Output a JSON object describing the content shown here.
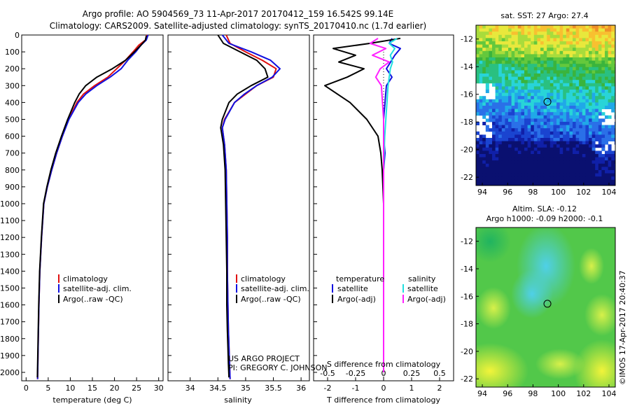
{
  "header": {
    "line1": "Argo profile: AO 5904569_73 11-Apr-2017 20170412_159 16.542S 99.14E",
    "line2": "Climatology: CARS2009. Satellite-adjusted climatology: synTS_20170410.nc (1.7d earlier)"
  },
  "colors": {
    "clim": "#e01010",
    "sat": "#1010e0",
    "argo": "#000000",
    "sal_sat": "#20e0e0",
    "sal_argo": "#ff20ff"
  },
  "chart_data": [
    {
      "type": "line",
      "id": "temperature",
      "xlabel": "temperature (deg C)",
      "xlim": [
        -1,
        31
      ],
      "ylim": [
        0,
        2050
      ],
      "xticks": [
        0,
        5,
        10,
        15,
        20,
        25,
        30
      ],
      "yticks": [
        0,
        100,
        200,
        300,
        400,
        500,
        600,
        700,
        800,
        900,
        1000,
        1100,
        1200,
        1300,
        1400,
        1500,
        1600,
        1700,
        1800,
        1900,
        2000
      ],
      "legend": {
        "position": "lower-middle",
        "entries": [
          "climatology",
          "satellite-adj. clim.",
          "Argo(..raw -QC)"
        ]
      },
      "series": [
        {
          "name": "climatology",
          "color_key": "clim",
          "x": [
            27.3,
            27,
            25.5,
            24.2,
            22.5,
            20.5,
            18.5,
            15.5,
            13,
            11.5,
            9.6,
            8.2,
            6.9,
            5.8,
            4.8,
            4,
            3.5,
            3.1,
            2.9,
            2.75,
            2.6
          ],
          "y": [
            0,
            30,
            60,
            100,
            150,
            200,
            250,
            300,
            350,
            400,
            500,
            600,
            700,
            800,
            900,
            1000,
            1200,
            1400,
            1600,
            1800,
            2040
          ]
        },
        {
          "name": "satellite-adj. clim.",
          "color_key": "sat",
          "x": [
            27.6,
            27.2,
            26,
            24.8,
            23,
            21.5,
            19,
            16,
            13.5,
            11.8,
            9.7,
            8.2,
            6.9,
            5.8,
            4.8,
            4,
            3.5,
            3.1,
            2.9,
            2.75,
            2.6
          ],
          "y": [
            0,
            30,
            60,
            100,
            150,
            200,
            250,
            300,
            350,
            400,
            500,
            600,
            700,
            800,
            900,
            1000,
            1200,
            1400,
            1600,
            1800,
            2040
          ]
        },
        {
          "name": "Argo(..raw -QC)",
          "color_key": "argo",
          "x": [
            27.2,
            27,
            26,
            24.5,
            22.5,
            19.5,
            16,
            13.5,
            12,
            11,
            9.4,
            8,
            6.7,
            5.6,
            4.7,
            3.95,
            3.45,
            3.05,
            2.85,
            2.7,
            2.55
          ],
          "y": [
            5,
            30,
            60,
            100,
            150,
            200,
            250,
            300,
            350,
            400,
            500,
            600,
            700,
            800,
            900,
            1000,
            1200,
            1400,
            1600,
            1800,
            2030
          ]
        }
      ]
    },
    {
      "type": "line",
      "id": "salinity",
      "xlabel": "salinity",
      "xlim": [
        33.6,
        36.15
      ],
      "ylim": [
        0,
        2050
      ],
      "xticks": [
        34,
        34.5,
        35,
        35.5,
        36
      ],
      "legend": {
        "position": "lower-middle",
        "entries": [
          "climatology",
          "satellite-adj. clim.",
          "Argo(..raw -QC)"
        ]
      },
      "annotation": [
        "US ARGO PROJECT",
        "PI: GREGORY C. JOHNSON"
      ],
      "series": [
        {
          "name": "climatology",
          "color_key": "clim",
          "x": [
            34.65,
            34.72,
            35,
            35.3,
            35.55,
            35.5,
            35.2,
            35,
            34.8,
            34.62,
            34.58,
            34.62,
            34.65,
            34.66,
            34.67,
            34.67,
            34.68,
            34.69,
            34.7,
            34.71,
            34.72
          ],
          "y": [
            0,
            50,
            100,
            150,
            200,
            250,
            300,
            350,
            400,
            500,
            550,
            650,
            800,
            1000,
            1200,
            1400,
            1600,
            1750,
            1850,
            1950,
            2040
          ]
        },
        {
          "name": "satellite-adj. clim.",
          "color_key": "sat",
          "x": [
            34.58,
            34.7,
            35.1,
            35.45,
            35.62,
            35.48,
            35.2,
            34.98,
            34.8,
            34.63,
            34.58,
            34.62,
            34.65,
            34.66,
            34.67,
            34.67,
            34.68,
            34.69,
            34.7,
            34.71,
            34.72
          ],
          "y": [
            0,
            50,
            100,
            150,
            200,
            250,
            300,
            350,
            400,
            500,
            550,
            650,
            800,
            1000,
            1200,
            1400,
            1600,
            1750,
            1850,
            1950,
            2040
          ]
        },
        {
          "name": "Argo(..raw -QC)",
          "color_key": "argo",
          "x": [
            34.5,
            34.6,
            34.9,
            35.2,
            35.35,
            35.4,
            35.1,
            34.85,
            34.7,
            34.58,
            34.55,
            34.6,
            34.63,
            34.64,
            34.65,
            34.66,
            34.66,
            34.67,
            34.68,
            34.69,
            34.7
          ],
          "y": [
            0,
            50,
            100,
            150,
            200,
            250,
            300,
            350,
            400,
            500,
            550,
            650,
            800,
            1000,
            1200,
            1400,
            1600,
            1750,
            1850,
            1950,
            2030
          ]
        }
      ]
    },
    {
      "type": "line",
      "id": "difference",
      "xlabel": "T difference from climatology",
      "x2label": "S difference from climatology",
      "xlim": [
        -2.5,
        2.5
      ],
      "ylim": [
        0,
        2050
      ],
      "xticks": [
        -2,
        -1,
        0,
        1,
        2
      ],
      "x2ticks": [
        {
          "value": -0.5,
          "label": "-0.5"
        },
        {
          "value": -0.25,
          "label": "-0.25"
        },
        {
          "value": 0,
          "label": "0"
        },
        {
          "value": 0.25,
          "label": "0.25"
        },
        {
          "value": 0.5,
          "label": "0.5"
        }
      ],
      "x2scale": 4,
      "legend": {
        "temperature_head": "temperature",
        "salinity_head": "salinity",
        "temperature_entries": [
          "satellite",
          "Argo(-adj)"
        ],
        "salinity_entries": [
          "satellite",
          "Argo(-adj)"
        ]
      },
      "series": [
        {
          "name": "T satellite",
          "color_key": "sat",
          "x": [
            0.3,
            0.2,
            0.6,
            0.4,
            0.25,
            0.1,
            0.3,
            0.1,
            0.05,
            0,
            0,
            0.05,
            0,
            0,
            0,
            0,
            0,
            0,
            0
          ],
          "y": [
            20,
            50,
            80,
            120,
            160,
            200,
            250,
            300,
            400,
            500,
            600,
            700,
            800,
            1000,
            1200,
            1400,
            1600,
            1800,
            2000
          ]
        },
        {
          "name": "T Argo(-adj)",
          "color_key": "argo",
          "x": [
            0.6,
            -0.5,
            -1.8,
            -1,
            -1.6,
            -0.7,
            -1.3,
            -2.1,
            -1.2,
            -0.6,
            -0.2,
            -0.1,
            -0.05,
            0,
            0,
            0,
            0,
            0,
            0
          ],
          "y": [
            20,
            50,
            80,
            120,
            160,
            200,
            250,
            300,
            400,
            500,
            600,
            700,
            800,
            1000,
            1200,
            1400,
            1600,
            1800,
            2000
          ]
        },
        {
          "name": "S satellite",
          "color_key": "sal_sat",
          "scale_key": "x2",
          "x": [
            0.12,
            0.05,
            0.1,
            0.06,
            0.08,
            0.06,
            0.05,
            0.04,
            0.03,
            0.02,
            0.01,
            0,
            0,
            0,
            0
          ],
          "y": [
            20,
            50,
            80,
            120,
            160,
            200,
            250,
            300,
            400,
            500,
            600,
            800,
            1000,
            1400,
            2000
          ]
        },
        {
          "name": "S Argo(-adj)",
          "color_key": "sal_argo",
          "scale_key": "x2",
          "x": [
            -0.05,
            -0.12,
            0.02,
            -0.1,
            0.05,
            -0.03,
            -0.07,
            -0.02,
            -0.01,
            0,
            0,
            0,
            0,
            0,
            0
          ],
          "y": [
            20,
            50,
            80,
            120,
            160,
            200,
            250,
            300,
            400,
            500,
            600,
            800,
            1000,
            1400,
            2000
          ]
        }
      ]
    },
    {
      "type": "heatmap",
      "id": "sst_map",
      "title": "sat. SST: 27 Argo: 27.4",
      "xlim": [
        93.5,
        104.5
      ],
      "ylim": [
        -22.6,
        -11
      ],
      "xticks": [
        94,
        96,
        98,
        100,
        102,
        104
      ],
      "yticks": [
        -12,
        -14,
        -16,
        -18,
        -20,
        -22
      ],
      "marker": {
        "lon": 99.14,
        "lat": -16.542
      }
    },
    {
      "type": "heatmap",
      "id": "sla_map",
      "title": "Altim. SLA: -0.12",
      "subtitle": "Argo h1000: -0.09 h2000: -0.1",
      "xlim": [
        93.5,
        104.5
      ],
      "ylim": [
        -22.6,
        -11
      ],
      "xticks": [
        94,
        96,
        98,
        100,
        102,
        104
      ],
      "yticks": [
        -12,
        -14,
        -16,
        -18,
        -20,
        -22
      ],
      "marker": {
        "lon": 99.14,
        "lat": -16.542
      }
    }
  ],
  "footer": {
    "credit": "©IMOS 17-Apr-2017 20:40:37"
  }
}
